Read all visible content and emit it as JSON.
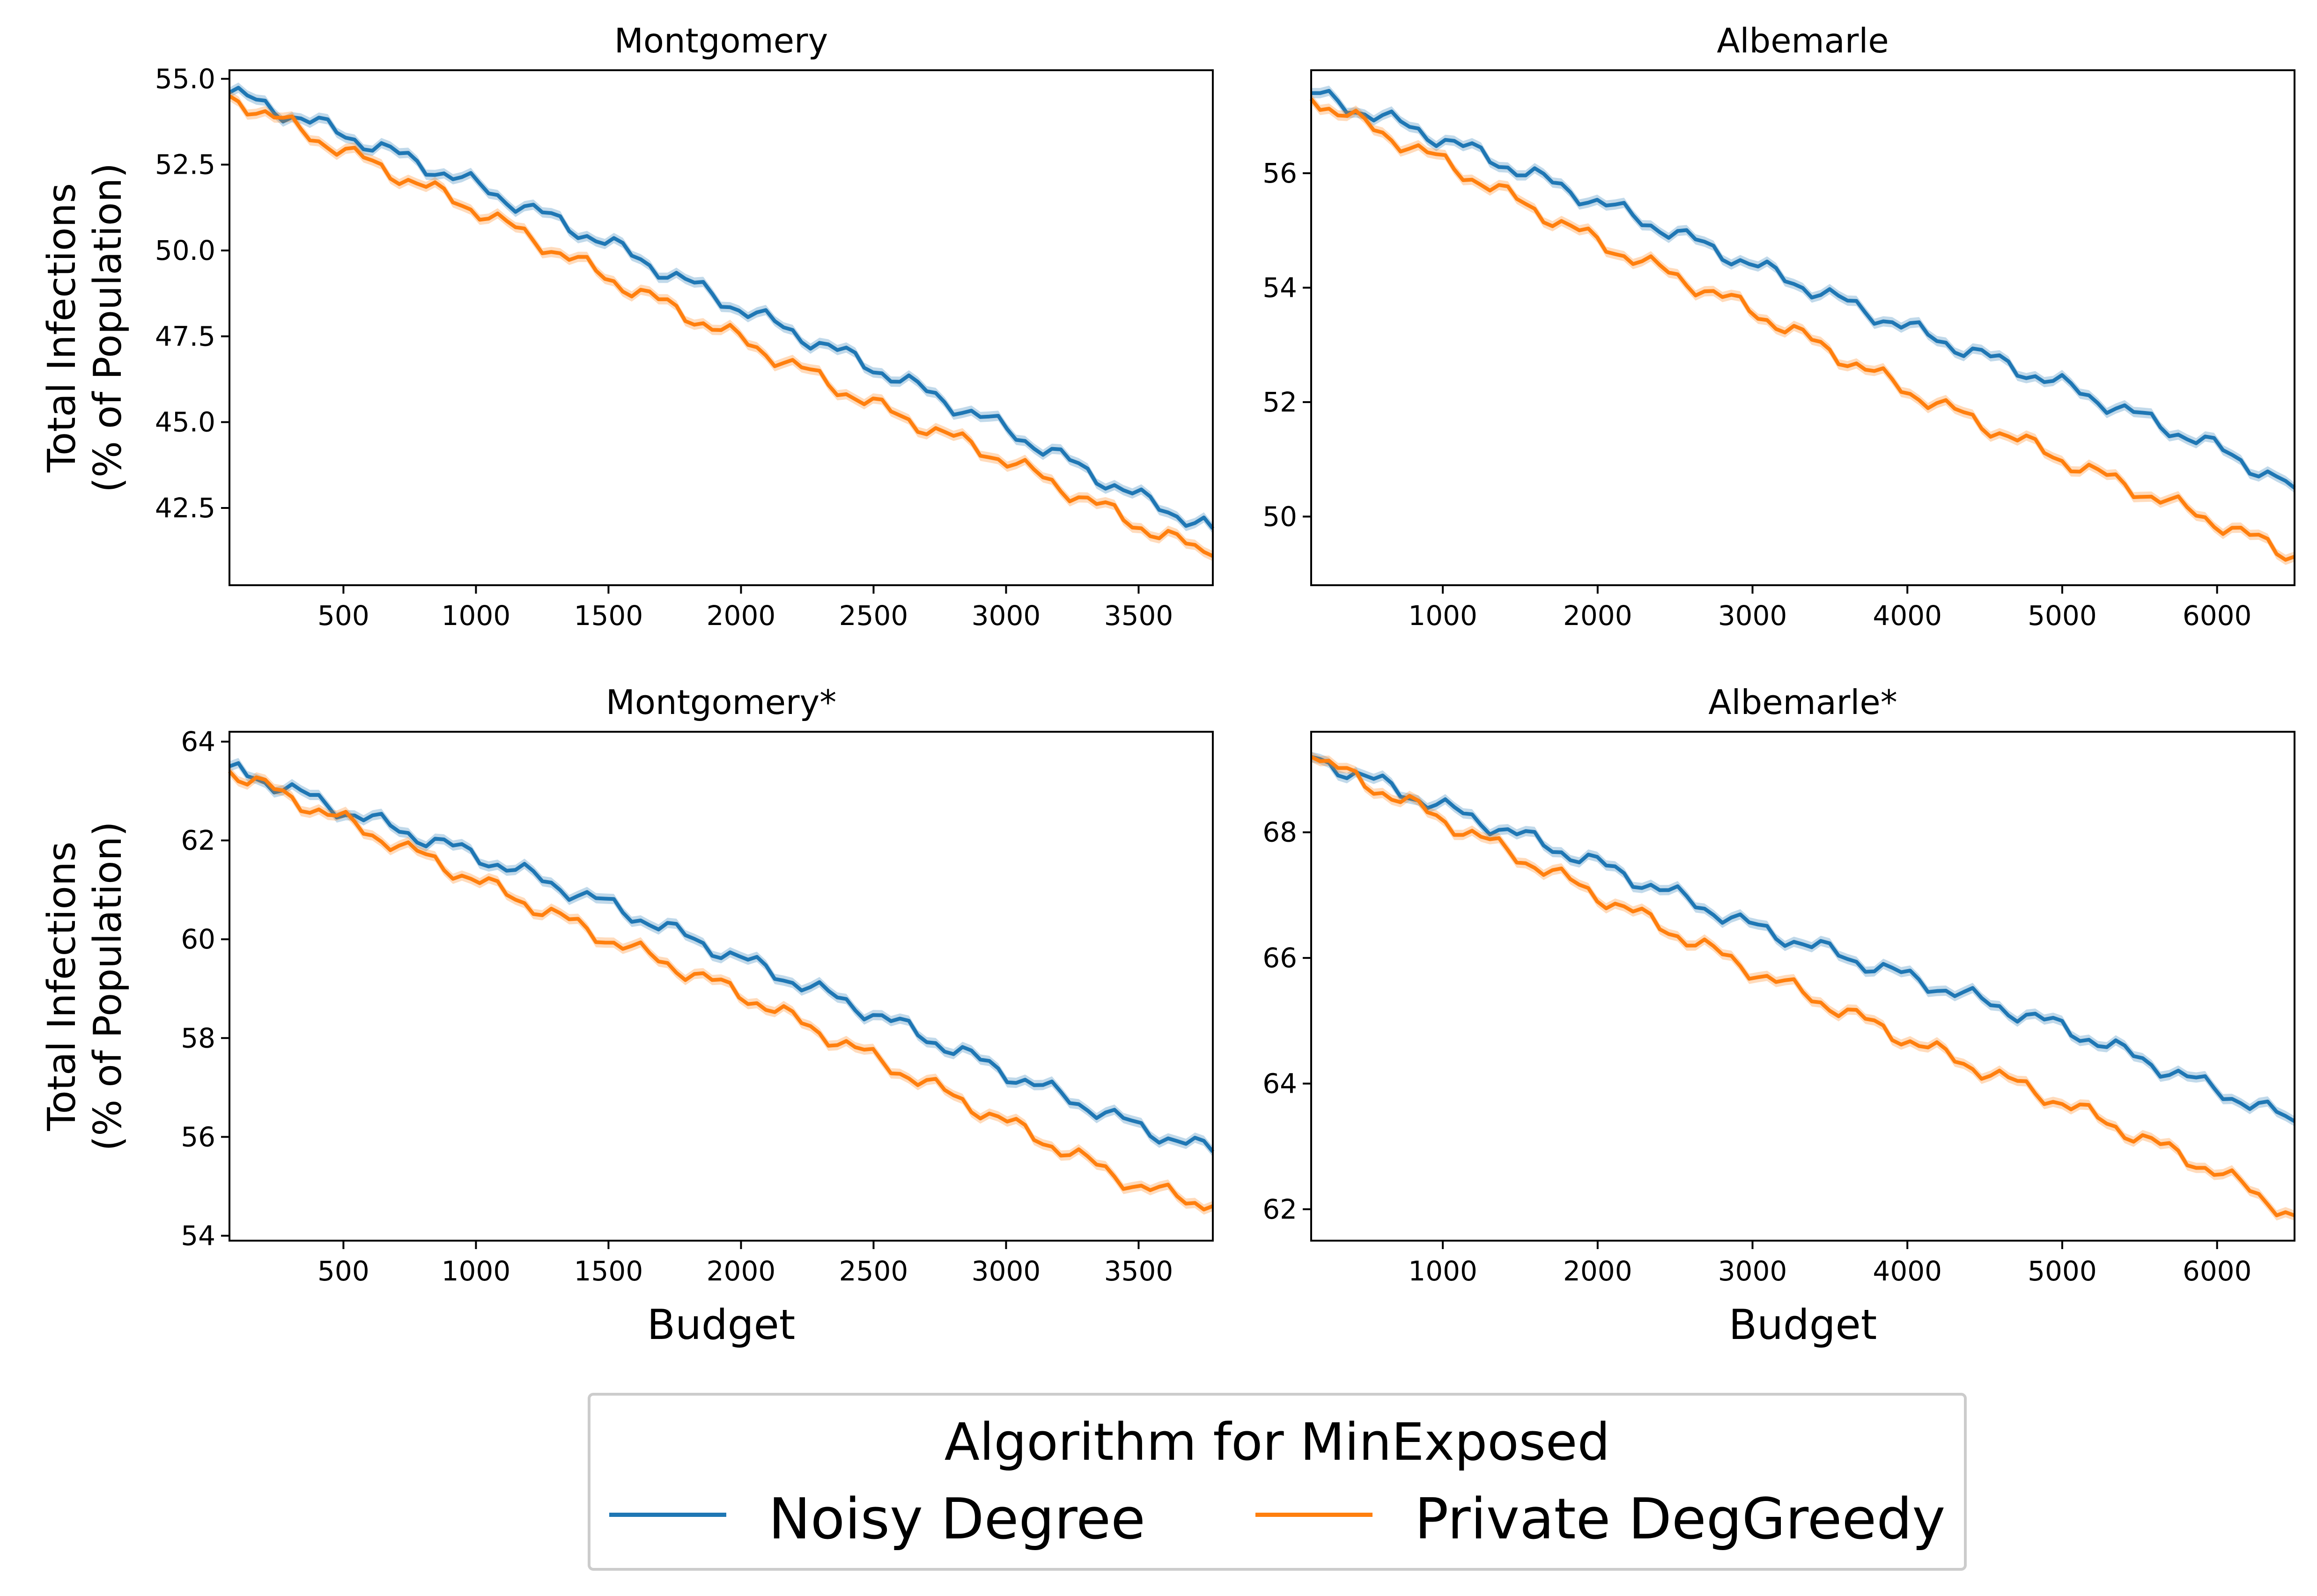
{
  "colors": {
    "noisy": "#1f77b4",
    "private": "#ff7f0e"
  },
  "legend": {
    "title": "Algorithm for MinExposed",
    "items": [
      {
        "label": "Noisy Degree",
        "color": "#1f77b4"
      },
      {
        "label": "Private DegGreedy",
        "color": "#ff7f0e"
      }
    ]
  },
  "chart_data": [
    {
      "type": "line",
      "title": "Montgomery",
      "ylabel": "Total Infections\n(% of Population)",
      "xlabel": "",
      "xlim": [
        70,
        3780
      ],
      "ylim": [
        40.25,
        55.25
      ],
      "xticks": [
        500,
        1000,
        1500,
        2000,
        2500,
        3000,
        3500
      ],
      "yticks": [
        42.5,
        45.0,
        47.5,
        50.0,
        52.5,
        55.0
      ],
      "ytick_labels": [
        "42.5",
        "45.0",
        "47.5",
        "50.0",
        "52.5",
        "55.0"
      ],
      "x": [
        70,
        500,
        1000,
        1500,
        2000,
        2500,
        3000,
        3500,
        3780
      ],
      "series": [
        {
          "name": "Noisy Degree",
          "values": [
            54.6,
            53.4,
            51.9,
            50.2,
            48.3,
            46.6,
            44.8,
            42.8,
            41.9
          ]
        },
        {
          "name": "Private DegGreedy",
          "values": [
            54.5,
            52.9,
            51.2,
            49.2,
            47.4,
            45.5,
            43.9,
            42.0,
            41.1
          ]
        }
      ]
    },
    {
      "type": "line",
      "title": "Albemarle",
      "ylabel": "",
      "xlabel": "",
      "xlim": [
        150,
        6500
      ],
      "ylim": [
        48.8,
        57.8
      ],
      "xticks": [
        1000,
        2000,
        3000,
        4000,
        5000,
        6000
      ],
      "yticks": [
        50,
        52,
        54,
        56
      ],
      "ytick_labels": [
        "50",
        "52",
        "54",
        "56"
      ],
      "x": [
        150,
        1000,
        2000,
        3000,
        4000,
        5000,
        6000,
        6500
      ],
      "series": [
        {
          "name": "Noisy Degree",
          "values": [
            57.4,
            56.6,
            55.5,
            54.4,
            53.3,
            52.3,
            51.2,
            50.5
          ]
        },
        {
          "name": "Private DegGreedy",
          "values": [
            57.3,
            56.2,
            54.8,
            53.6,
            52.2,
            51.0,
            49.9,
            49.3
          ]
        }
      ]
    },
    {
      "type": "line",
      "title": "Montgomery*",
      "ylabel": "Total Infections\n(% of Population)",
      "xlabel": "Budget",
      "xlim": [
        70,
        3780
      ],
      "ylim": [
        53.9,
        64.2
      ],
      "xticks": [
        500,
        1000,
        1500,
        2000,
        2500,
        3000,
        3500
      ],
      "yticks": [
        54,
        56,
        58,
        60,
        62,
        64
      ],
      "ytick_labels": [
        "54",
        "56",
        "58",
        "60",
        "62",
        "64"
      ],
      "x": [
        70,
        500,
        1000,
        1500,
        2000,
        2500,
        3000,
        3500,
        3780
      ],
      "series": [
        {
          "name": "Noisy Degree",
          "values": [
            63.5,
            62.6,
            61.7,
            60.7,
            59.6,
            58.5,
            57.3,
            56.2,
            55.7
          ]
        },
        {
          "name": "Private DegGreedy",
          "values": [
            63.4,
            62.4,
            61.2,
            60.0,
            58.9,
            57.6,
            56.3,
            55.0,
            54.6
          ]
        }
      ]
    },
    {
      "type": "line",
      "title": "Albemarle*",
      "ylabel": "",
      "xlabel": "Budget",
      "xlim": [
        150,
        6500
      ],
      "ylim": [
        61.5,
        69.6
      ],
      "xticks": [
        1000,
        2000,
        3000,
        4000,
        5000,
        6000
      ],
      "yticks": [
        62,
        64,
        66,
        68
      ],
      "ytick_labels": [
        "62",
        "64",
        "66",
        "68"
      ],
      "x": [
        150,
        1000,
        2000,
        3000,
        4000,
        5000,
        6000,
        6500
      ],
      "series": [
        {
          "name": "Noisy Degree",
          "values": [
            69.2,
            68.4,
            67.5,
            66.5,
            65.7,
            64.9,
            63.9,
            63.4
          ]
        },
        {
          "name": "Private DegGreedy",
          "values": [
            69.2,
            68.2,
            67.0,
            65.8,
            64.7,
            63.7,
            62.6,
            61.9
          ]
        }
      ]
    }
  ]
}
